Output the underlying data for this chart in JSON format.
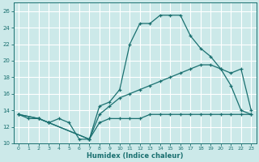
{
  "xlabel": "Humidex (Indice chaleur)",
  "background_color": "#cce9e9",
  "grid_color": "#b0d4d4",
  "line_color": "#1a7070",
  "xlim": [
    -0.5,
    23.5
  ],
  "ylim": [
    10,
    27
  ],
  "xticks": [
    0,
    1,
    2,
    3,
    4,
    5,
    6,
    7,
    8,
    9,
    10,
    11,
    12,
    13,
    14,
    15,
    16,
    17,
    18,
    19,
    20,
    21,
    22,
    23
  ],
  "yticks": [
    10,
    12,
    14,
    16,
    18,
    20,
    22,
    24,
    26
  ],
  "series": [
    {
      "x": [
        0,
        1,
        2,
        3,
        4,
        5,
        6,
        7,
        8,
        9,
        10,
        11,
        12,
        13,
        14,
        15,
        16,
        17,
        18,
        19,
        20,
        21,
        22,
        23
      ],
      "y": [
        13.5,
        13.0,
        13.0,
        12.5,
        13.0,
        12.5,
        10.5,
        10.5,
        14.5,
        15.0,
        16.5,
        22.0,
        24.5,
        24.5,
        25.5,
        25.5,
        25.5,
        23.0,
        21.5,
        20.5,
        19.0,
        17.0,
        14.0,
        13.5
      ]
    },
    {
      "x": [
        0,
        2,
        3,
        7,
        8,
        9,
        10,
        11,
        12,
        13,
        14,
        15,
        16,
        17,
        18,
        19,
        20,
        21,
        22,
        23
      ],
      "y": [
        13.5,
        13.0,
        12.5,
        10.5,
        13.5,
        14.5,
        15.5,
        16.0,
        16.5,
        17.0,
        17.5,
        18.0,
        18.5,
        19.0,
        19.5,
        19.5,
        19.0,
        18.5,
        19.0,
        14.0
      ]
    },
    {
      "x": [
        0,
        2,
        3,
        7,
        8,
        9,
        10,
        11,
        12,
        13,
        14,
        15,
        16,
        17,
        18,
        19,
        20,
        21,
        22,
        23
      ],
      "y": [
        13.5,
        13.0,
        12.5,
        10.5,
        12.5,
        13.0,
        13.0,
        13.0,
        13.0,
        13.5,
        13.5,
        13.5,
        13.5,
        13.5,
        13.5,
        13.5,
        13.5,
        13.5,
        13.5,
        13.5
      ]
    }
  ]
}
